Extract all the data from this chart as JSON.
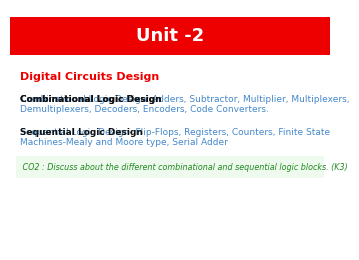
{
  "title": "Unit -2",
  "title_bg_color": "#EE0000",
  "title_text_color": "#FFFFFF",
  "bg_color": "#FFFFFF",
  "heading": "Digital Circuits Design",
  "heading_color": "#EE0000",
  "para1_bold": "Combinational Logic Design",
  "para1_colon": ": Adders, Subtractor, Multiplier, Multiplexers,\nDemultiplexers, Decoders, Encoders, Code Converters.",
  "para1_color": "#4488CC",
  "para2_bold": "Sequential Logic Design",
  "para2_dash": "- Flip-Flops, Registers, Counters, Finite State\nMachines-Mealy and Moore type, Serial Adder",
  "para2_color": "#4488CC",
  "co2_full": " CO2 : Discuss about the different combinational and sequential logic blocks. (K3)",
  "co2_color": "#228822",
  "co2_bg": "#EDFAED"
}
